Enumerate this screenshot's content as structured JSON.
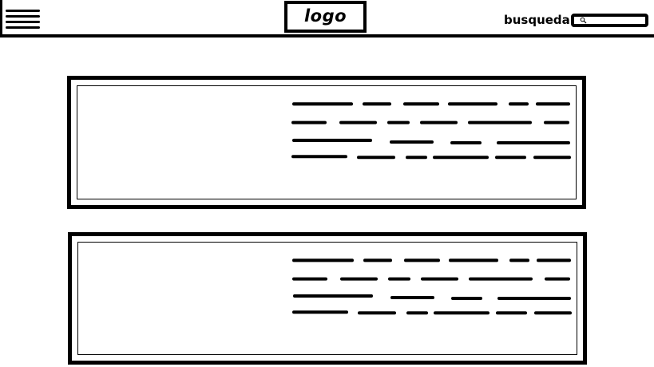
{
  "header": {
    "logo_text": "logo",
    "search_label": "busqueda",
    "search_value": ""
  },
  "icons": {
    "menu": "hamburger-menu-icon",
    "search": "magnifier-icon"
  },
  "cards": [
    {
      "name": "content-card-1"
    },
    {
      "name": "content-card-2"
    }
  ]
}
